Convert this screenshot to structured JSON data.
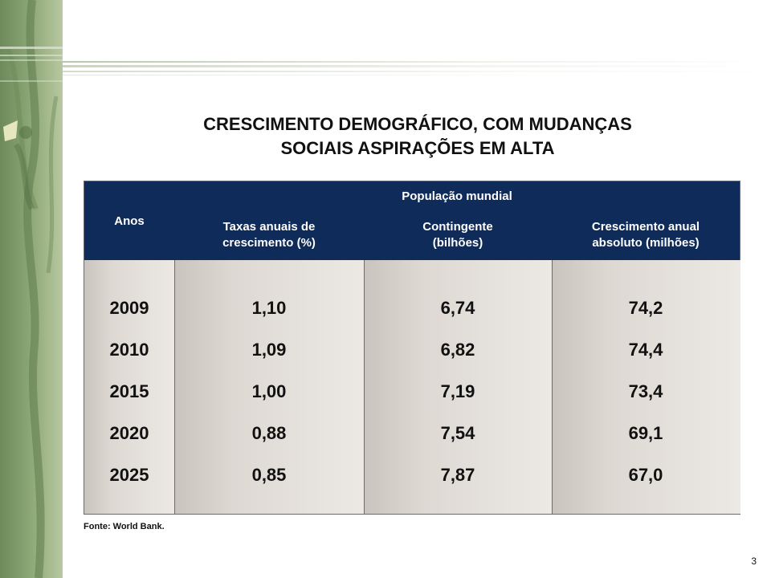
{
  "slide": {
    "title": "CRESCIMENTO DEMOGRÁFICO, COM MUDANÇAS\nSOCIAIS ASPIRAÇÕES EM ALTA",
    "source": "Fonte: World Bank.",
    "page_number": "3"
  },
  "table": {
    "header_years": "Anos",
    "header_group": "População mundial",
    "columns": [
      "Taxas anuais de\ncrescimento (%)",
      "Contingente\n(bilhões)",
      "Crescimento anual\nabsoluto (milhões)"
    ],
    "rows": [
      [
        "2009",
        "1,10",
        "6,74",
        "74,2"
      ],
      [
        "2010",
        "1,09",
        "6,82",
        "74,4"
      ],
      [
        "2015",
        "1,00",
        "7,19",
        "73,4"
      ],
      [
        "2020",
        "0,88",
        "7,54",
        "69,1"
      ],
      [
        "2025",
        "0,85",
        "7,87",
        "67,0"
      ]
    ]
  },
  "colors": {
    "header_bg": "#0f2b5a",
    "accent_green": "#8aa574"
  }
}
